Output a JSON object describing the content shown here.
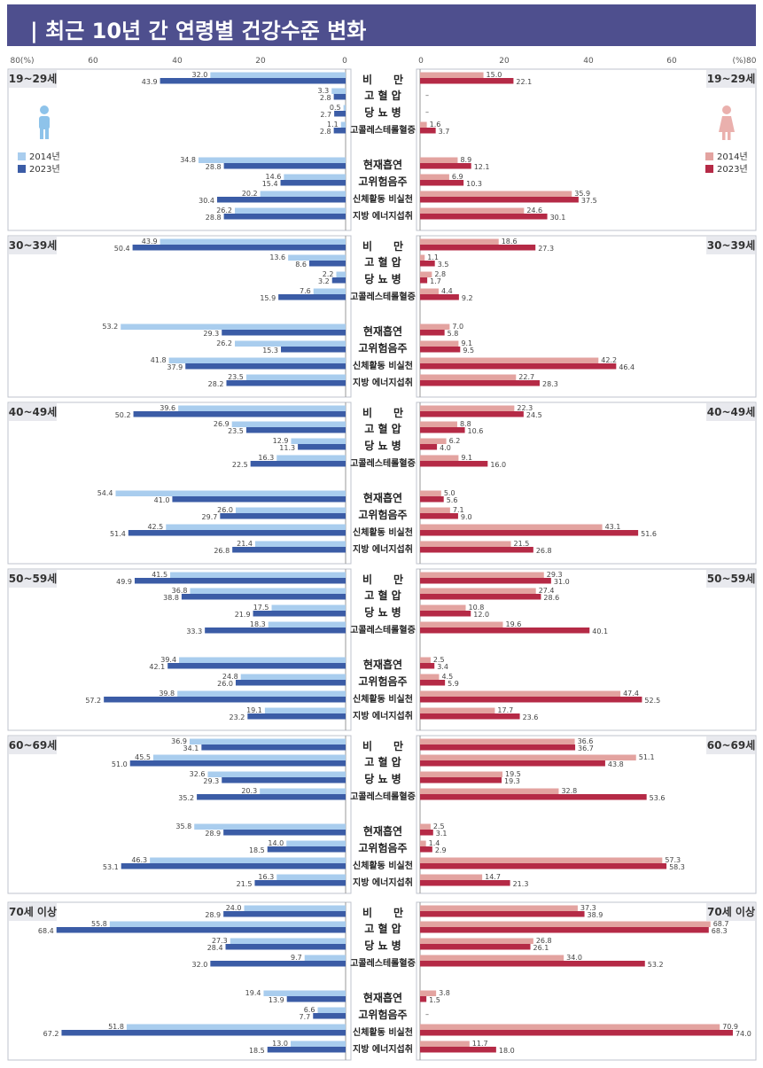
{
  "header": {
    "title": "| 최근 10년 간 연령별 건강수준 변화"
  },
  "chart_data": {
    "type": "bar",
    "orientation": "horizontal-butterfly",
    "axis": {
      "left_ticks": [
        "80(%)",
        "60",
        "40",
        "20",
        "0"
      ],
      "right_ticks": [
        "0",
        "20",
        "40",
        "60",
        "(%)80"
      ],
      "range": [
        0,
        80
      ]
    },
    "categories": [
      "비　　만",
      "고 혈 압",
      "당 뇨 병",
      "고콜레스테롤혈증",
      "현재흡연",
      "고위험음주",
      "신체활동 비실천",
      "지방 에너지섭취"
    ],
    "legend_male": [
      "2014년",
      "2023년"
    ],
    "legend_female": [
      "2014년",
      "2023년"
    ],
    "colors": {
      "male_2014": "#a9cdee",
      "male_2023": "#3b5ca6",
      "female_2014": "#e3a3a0",
      "female_2023": "#b52a46"
    },
    "groups": [
      {
        "age": "19~29세",
        "male_2014": [
          32.0,
          3.3,
          0.5,
          1.1,
          34.8,
          14.6,
          20.2,
          26.2
        ],
        "male_2023": [
          43.9,
          2.8,
          2.7,
          2.8,
          28.8,
          15.4,
          30.4,
          28.8
        ],
        "female_2014": [
          15.0,
          null,
          null,
          1.6,
          8.9,
          6.9,
          35.9,
          24.6
        ],
        "female_2023": [
          22.1,
          null,
          null,
          3.7,
          12.1,
          10.3,
          37.5,
          30.1
        ]
      },
      {
        "age": "30~39세",
        "male_2014": [
          43.9,
          13.6,
          2.2,
          7.6,
          53.2,
          26.2,
          41.8,
          23.5
        ],
        "male_2023": [
          50.4,
          8.6,
          3.2,
          15.9,
          29.3,
          15.3,
          37.9,
          28.2
        ],
        "female_2014": [
          18.6,
          1.1,
          2.8,
          4.4,
          7.0,
          9.1,
          42.2,
          22.7
        ],
        "female_2023": [
          27.3,
          3.5,
          1.7,
          9.2,
          5.8,
          9.5,
          46.4,
          28.3
        ]
      },
      {
        "age": "40~49세",
        "male_2014": [
          39.6,
          26.9,
          12.9,
          16.3,
          54.4,
          26.0,
          42.5,
          21.4
        ],
        "male_2023": [
          50.2,
          23.5,
          11.3,
          22.5,
          41.0,
          29.7,
          51.4,
          26.8
        ],
        "female_2014": [
          22.3,
          8.8,
          6.2,
          9.1,
          5.0,
          7.1,
          43.1,
          21.5
        ],
        "female_2023": [
          24.5,
          10.6,
          4.0,
          16.0,
          5.6,
          9.0,
          51.6,
          26.8
        ]
      },
      {
        "age": "50~59세",
        "male_2014": [
          41.5,
          36.8,
          17.5,
          18.3,
          39.4,
          24.8,
          39.8,
          19.1
        ],
        "male_2023": [
          49.9,
          38.8,
          21.9,
          33.3,
          42.1,
          26.0,
          57.2,
          23.2
        ],
        "female_2014": [
          29.3,
          27.4,
          10.8,
          19.6,
          2.5,
          4.5,
          47.4,
          17.7
        ],
        "female_2023": [
          31.0,
          28.6,
          12.0,
          40.1,
          3.4,
          5.9,
          52.5,
          23.6
        ]
      },
      {
        "age": "60~69세",
        "male_2014": [
          36.9,
          45.5,
          32.6,
          20.3,
          35.8,
          14.0,
          46.3,
          16.3
        ],
        "male_2023": [
          34.1,
          51.0,
          29.3,
          35.2,
          28.9,
          18.5,
          53.1,
          21.5
        ],
        "female_2014": [
          36.6,
          51.1,
          19.5,
          32.8,
          2.5,
          1.4,
          57.3,
          14.7
        ],
        "female_2023": [
          36.7,
          43.8,
          19.3,
          53.6,
          3.1,
          2.9,
          58.3,
          21.3
        ]
      },
      {
        "age": "70세 이상",
        "male_2014": [
          24.0,
          55.8,
          27.3,
          9.7,
          19.4,
          6.6,
          51.8,
          13.0
        ],
        "male_2023": [
          28.9,
          68.4,
          28.4,
          32.0,
          13.9,
          7.7,
          67.2,
          18.5
        ],
        "female_2014": [
          37.3,
          68.7,
          26.8,
          34.0,
          3.8,
          null,
          70.9,
          11.7
        ],
        "female_2023": [
          38.9,
          68.3,
          26.1,
          53.2,
          1.5,
          null,
          74.0,
          18.0
        ]
      }
    ]
  }
}
